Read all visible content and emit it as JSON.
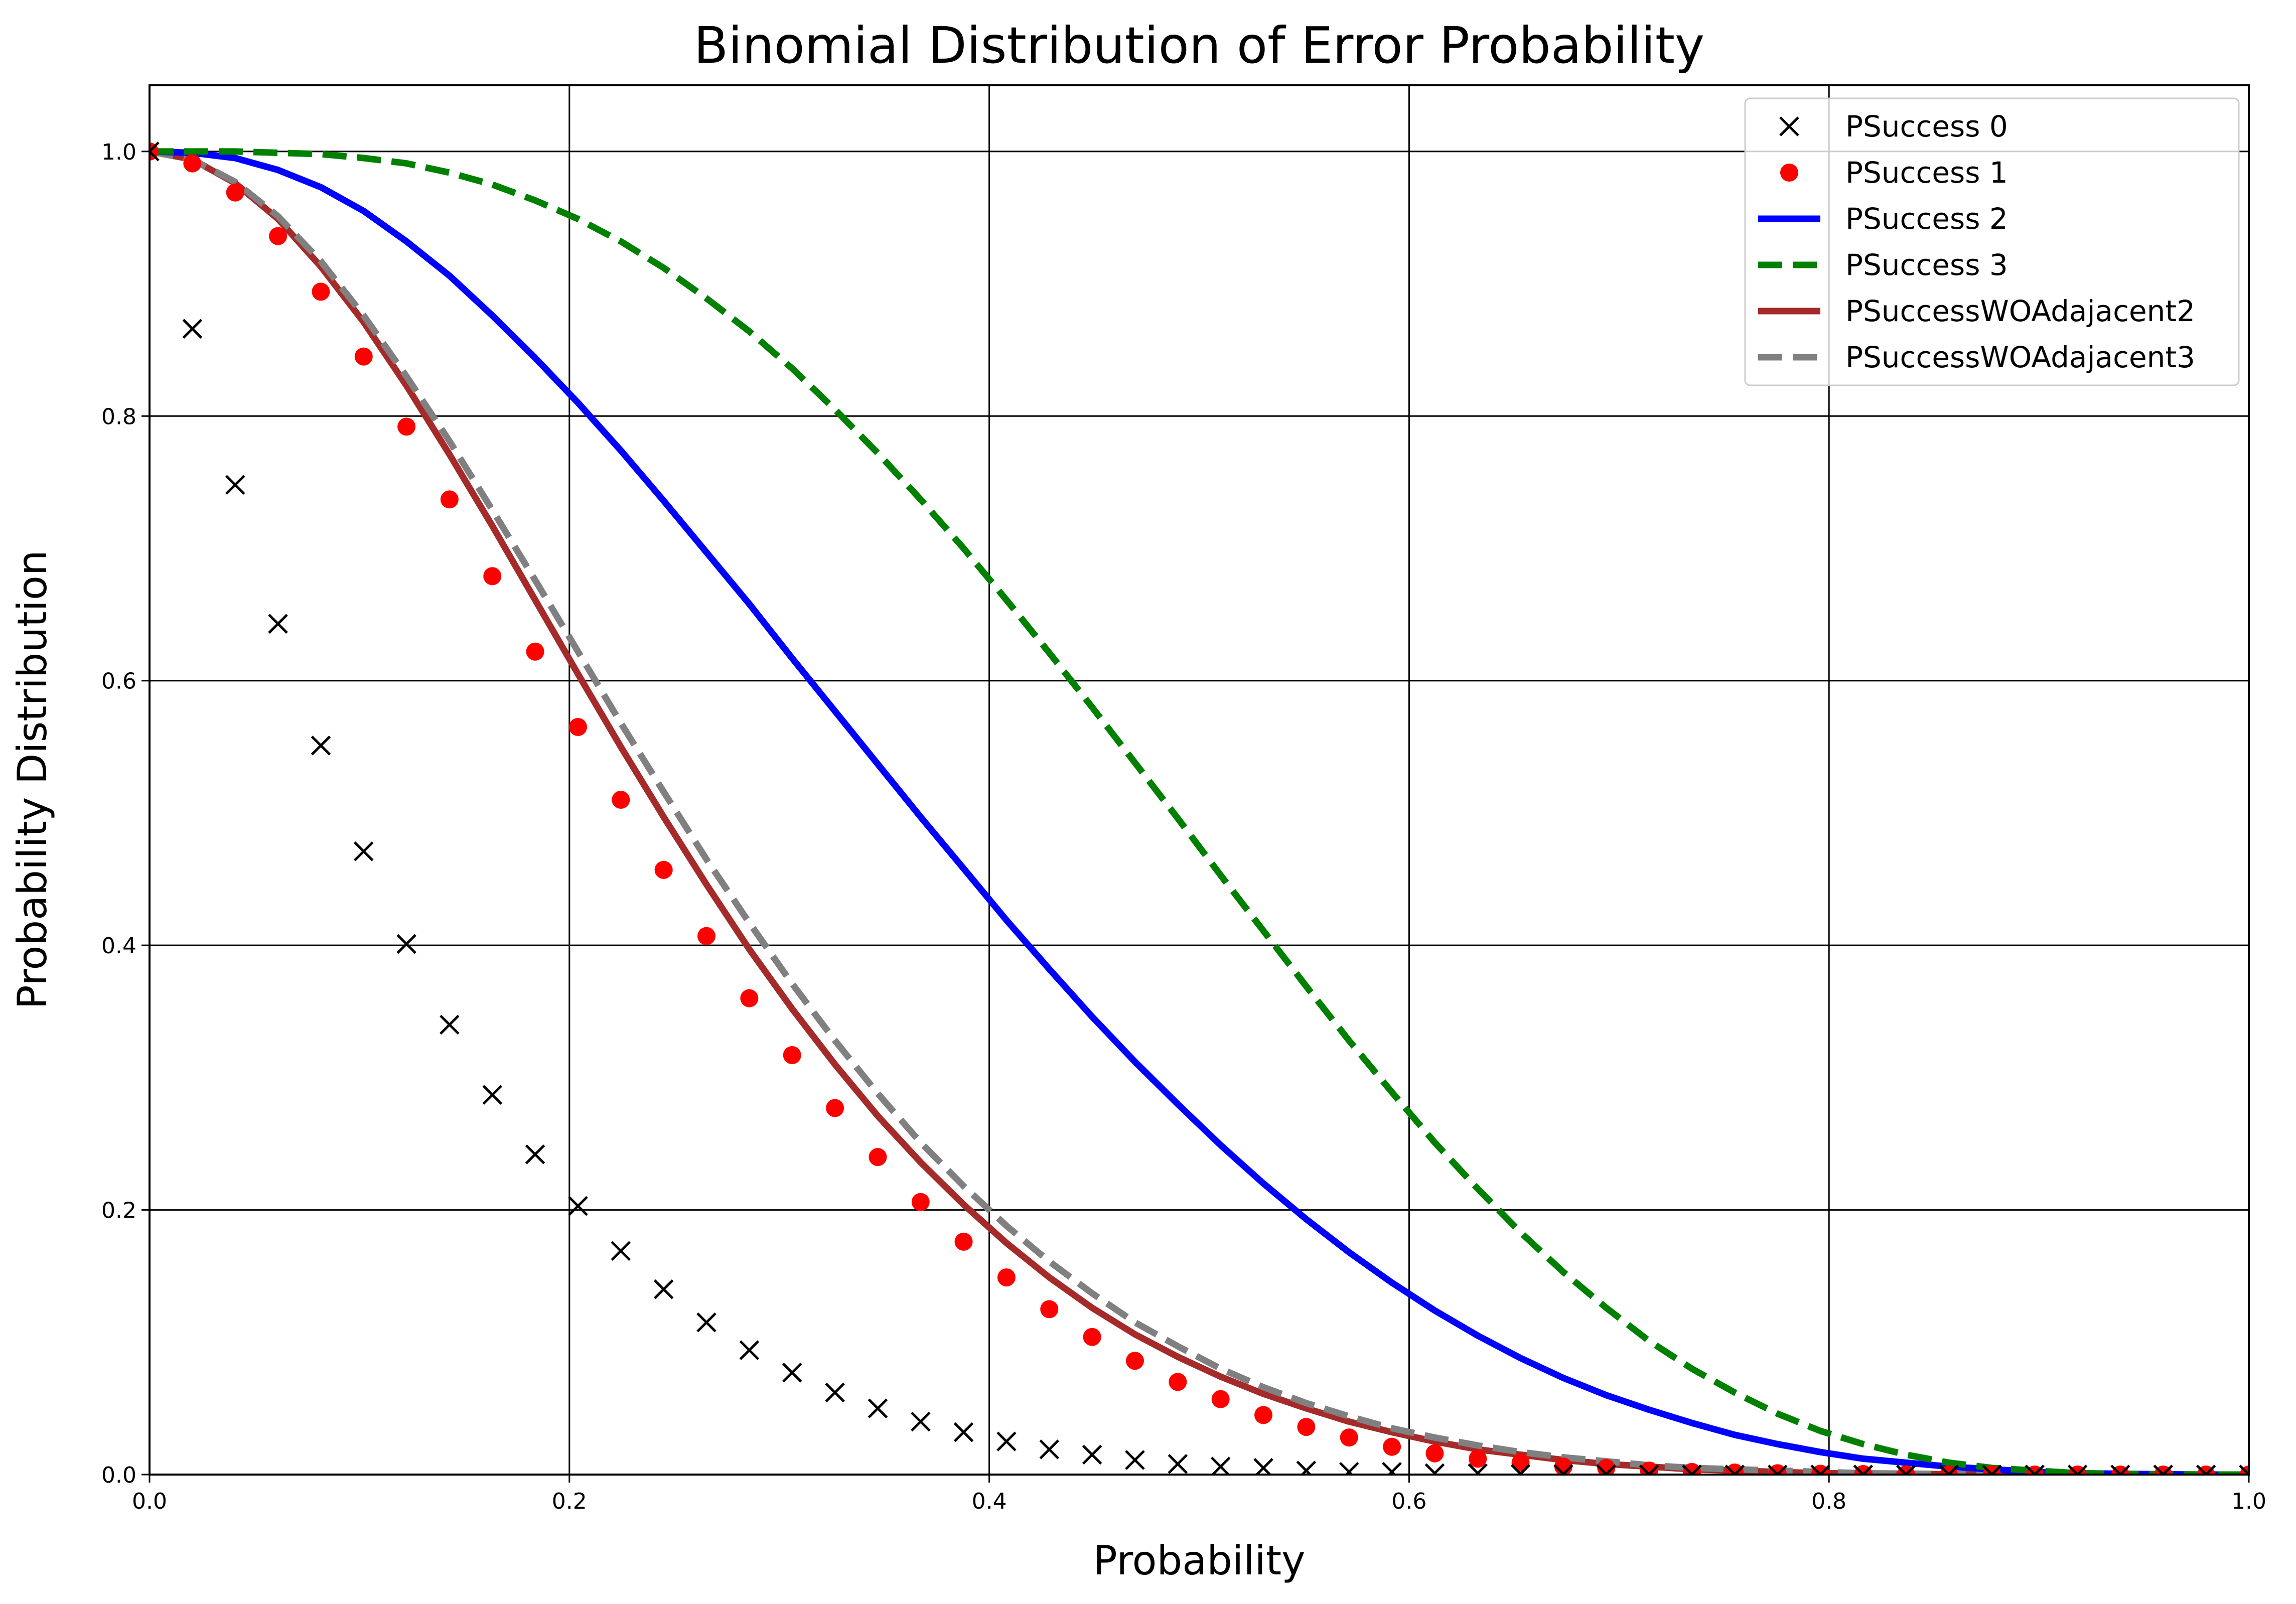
{
  "chart_data": {
    "type": "line",
    "title": "Binomial Distribution of Error Probability",
    "xlabel": "Probability",
    "ylabel": "Probability Distribution",
    "xlim": [
      0,
      1
    ],
    "ylim": [
      0,
      1.05
    ],
    "xticks": [
      "0.0",
      "0.2",
      "0.4",
      "0.6",
      "0.8",
      "1.0"
    ],
    "yticks": [
      "0.0",
      "0.2",
      "0.4",
      "0.6",
      "0.8",
      "1.0"
    ],
    "grid": true,
    "legend_position": "top-right",
    "x": [
      0.0,
      0.0204,
      0.0408,
      0.0612,
      0.0816,
      0.102,
      0.1224,
      0.1429,
      0.1633,
      0.1837,
      0.2041,
      0.2245,
      0.2449,
      0.2653,
      0.2857,
      0.3061,
      0.3265,
      0.3469,
      0.3673,
      0.3878,
      0.4082,
      0.4286,
      0.449,
      0.4694,
      0.4898,
      0.5102,
      0.5306,
      0.551,
      0.5714,
      0.5918,
      0.6122,
      0.6327,
      0.6531,
      0.6735,
      0.6939,
      0.7143,
      0.7347,
      0.7551,
      0.7755,
      0.7959,
      0.8163,
      0.8367,
      0.8571,
      0.8776,
      0.898,
      0.9184,
      0.9388,
      0.9592,
      0.9796,
      1.0
    ],
    "series": [
      {
        "name": "PSuccess 0",
        "style": "x-marker",
        "color": "#000000",
        "values": [
          1.0,
          0.866,
          0.748,
          0.643,
          0.551,
          0.471,
          0.401,
          0.34,
          0.287,
          0.242,
          0.203,
          0.169,
          0.14,
          0.115,
          0.094,
          0.077,
          0.062,
          0.05,
          0.04,
          0.032,
          0.025,
          0.019,
          0.015,
          0.011,
          0.008,
          0.006,
          0.005,
          0.003,
          0.002,
          0.002,
          0.001,
          0.001,
          0.0005,
          0.0003,
          0.0002,
          0.0001,
          0.0001,
          0.0,
          0.0,
          0.0,
          0.0,
          0.0,
          0.0,
          0.0,
          0.0,
          0.0,
          0.0,
          0.0,
          0.0,
          0.0
        ]
      },
      {
        "name": "PSuccess 1",
        "style": "dot-marker",
        "color": "#ff0000",
        "values": [
          1.0,
          0.991,
          0.969,
          0.936,
          0.894,
          0.845,
          0.792,
          0.737,
          0.679,
          0.622,
          0.565,
          0.51,
          0.457,
          0.407,
          0.36,
          0.317,
          0.277,
          0.24,
          0.206,
          0.176,
          0.149,
          0.125,
          0.104,
          0.086,
          0.07,
          0.057,
          0.045,
          0.036,
          0.028,
          0.021,
          0.016,
          0.012,
          0.009,
          0.006,
          0.005,
          0.003,
          0.002,
          0.0015,
          0.001,
          0.0006,
          0.0004,
          0.0002,
          0.0001,
          0.0001,
          0.0,
          0.0,
          0.0,
          0.0,
          0.0,
          0.0
        ]
      },
      {
        "name": "PSuccess 2",
        "style": "solid",
        "color": "#0000ff",
        "values": [
          1.0,
          0.999,
          0.995,
          0.986,
          0.973,
          0.955,
          0.932,
          0.906,
          0.876,
          0.844,
          0.81,
          0.774,
          0.736,
          0.697,
          0.658,
          0.617,
          0.577,
          0.537,
          0.497,
          0.458,
          0.419,
          0.382,
          0.346,
          0.312,
          0.28,
          0.249,
          0.22,
          0.193,
          0.168,
          0.145,
          0.124,
          0.105,
          0.088,
          0.073,
          0.06,
          0.049,
          0.039,
          0.03,
          0.023,
          0.017,
          0.012,
          0.009,
          0.006,
          0.004,
          0.002,
          0.001,
          0.0006,
          0.0002,
          0.0,
          0.0
        ]
      },
      {
        "name": "PSuccess 3",
        "style": "dashed",
        "color": "#008000",
        "values": [
          1.0,
          1.0,
          1.0,
          0.999,
          0.998,
          0.995,
          0.991,
          0.984,
          0.975,
          0.963,
          0.949,
          0.932,
          0.912,
          0.889,
          0.864,
          0.836,
          0.805,
          0.772,
          0.737,
          0.7,
          0.661,
          0.621,
          0.58,
          0.538,
          0.496,
          0.453,
          0.411,
          0.369,
          0.328,
          0.289,
          0.251,
          0.216,
          0.183,
          0.153,
          0.126,
          0.101,
          0.08,
          0.062,
          0.046,
          0.033,
          0.023,
          0.015,
          0.009,
          0.005,
          0.003,
          0.001,
          0.0005,
          0.0001,
          0.0,
          0.0
        ]
      },
      {
        "name": "PSuccessWOAdajacent2",
        "style": "solid",
        "color": "#a52a2a",
        "values": [
          1.0,
          0.994,
          0.976,
          0.949,
          0.913,
          0.871,
          0.823,
          0.771,
          0.717,
          0.661,
          0.605,
          0.55,
          0.497,
          0.446,
          0.397,
          0.352,
          0.31,
          0.271,
          0.236,
          0.204,
          0.175,
          0.149,
          0.126,
          0.106,
          0.089,
          0.074,
          0.061,
          0.05,
          0.04,
          0.032,
          0.025,
          0.019,
          0.015,
          0.011,
          0.008,
          0.006,
          0.004,
          0.003,
          0.002,
          0.001,
          0.0008,
          0.0005,
          0.0003,
          0.0001,
          0.0001,
          0.0,
          0.0,
          0.0,
          0.0,
          0.0
        ]
      },
      {
        "name": "PSuccessWOAdajacent3",
        "style": "dashed",
        "color": "#808080",
        "values": [
          1.0,
          0.994,
          0.977,
          0.951,
          0.917,
          0.876,
          0.83,
          0.781,
          0.729,
          0.676,
          0.622,
          0.568,
          0.516,
          0.465,
          0.417,
          0.371,
          0.328,
          0.288,
          0.251,
          0.218,
          0.188,
          0.161,
          0.137,
          0.115,
          0.097,
          0.08,
          0.066,
          0.054,
          0.044,
          0.035,
          0.028,
          0.022,
          0.017,
          0.013,
          0.01,
          0.007,
          0.005,
          0.004,
          0.003,
          0.002,
          0.001,
          0.0007,
          0.0004,
          0.0002,
          0.0001,
          0.0,
          0.0,
          0.0,
          0.0,
          0.0
        ]
      }
    ]
  }
}
